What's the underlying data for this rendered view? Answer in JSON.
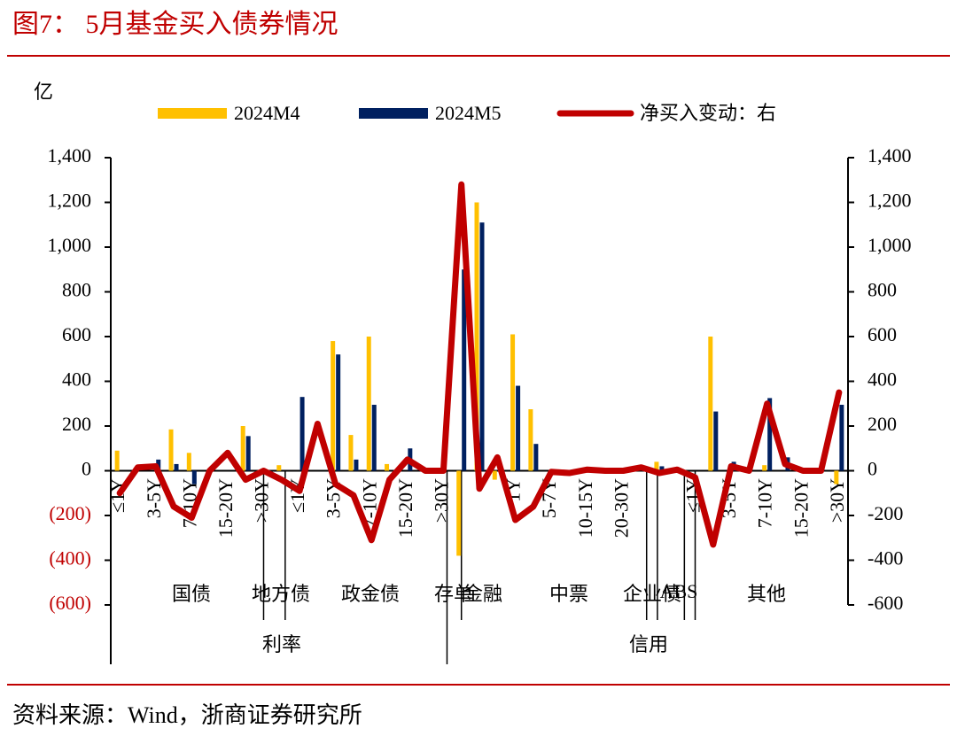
{
  "title": "图7：  5月基金买入债券情况",
  "source": "资料来源：Wind，浙商证券研究所",
  "chart_data": {
    "type": "bar-line",
    "y_unit": "亿",
    "categories": [
      "≤1Y",
      null,
      "3-5Y",
      null,
      "7-10Y",
      null,
      "15-20Y",
      null,
      ">30Y",
      null,
      "≤1Y",
      null,
      "3-5Y",
      null,
      "7-10Y",
      null,
      "15-20Y",
      null,
      ">30Y",
      null,
      null,
      null,
      "1Y",
      null,
      "5-7Y",
      null,
      "10-15Y",
      null,
      "20-30Y",
      null,
      null,
      null,
      "≤1Y",
      null,
      "3-5Y",
      null,
      "7-10Y",
      null,
      "15-20Y",
      null,
      ">30Y"
    ],
    "groups": [
      "国债",
      "地方债",
      "政金债",
      "存单",
      "金融",
      "中票",
      "企业债",
      "ABS",
      "其他"
    ],
    "super_groups": [
      "利率",
      "信用"
    ],
    "series": [
      {
        "name": "2024M4",
        "color": "#ffc000",
        "kind": "bar",
        "values": [
          90,
          null,
          null,
          185,
          80,
          null,
          null,
          200,
          null,
          25,
          null,
          null,
          580,
          160,
          600,
          30,
          null,
          null,
          null,
          -380,
          1200,
          -40,
          610,
          275,
          null,
          null,
          null,
          null,
          null,
          null,
          40,
          null,
          null,
          600,
          null,
          null,
          25,
          null,
          null,
          null,
          -60
        ]
      },
      {
        "name": "2024M5",
        "color": "#002060",
        "kind": "bar",
        "values": [
          null,
          null,
          50,
          30,
          -60,
          null,
          null,
          155,
          null,
          null,
          330,
          null,
          520,
          50,
          295,
          null,
          100,
          null,
          null,
          900,
          1110,
          null,
          380,
          120,
          null,
          null,
          null,
          null,
          null,
          null,
          20,
          null,
          null,
          265,
          40,
          null,
          325,
          60,
          null,
          null,
          295
        ]
      },
      {
        "name": "净买入变动：右",
        "color": "#c00000",
        "kind": "line",
        "axis": "y2",
        "values": [
          -100,
          15,
          20,
          -160,
          -210,
          0,
          80,
          -40,
          0,
          -40,
          -90,
          210,
          -60,
          -110,
          -310,
          -40,
          50,
          0,
          0,
          1280,
          -80,
          60,
          -220,
          -160,
          -5,
          -10,
          5,
          0,
          0,
          15,
          -10,
          5,
          -30,
          -330,
          20,
          0,
          300,
          30,
          0,
          0,
          350
        ]
      }
    ],
    "ylim": [
      -600,
      1400
    ],
    "yticks": [
      {
        "value": 1400,
        "label": "1,400"
      },
      {
        "value": 1200,
        "label": "1,200"
      },
      {
        "value": 1000,
        "label": "1,000"
      },
      800,
      600,
      400,
      200,
      0,
      {
        "value": -200,
        "label": "(200)"
      },
      {
        "value": -400,
        "label": "(400)"
      },
      {
        "value": -600,
        "label": "(600)"
      }
    ],
    "y2lim": [
      -600,
      1400
    ],
    "y2ticks": [
      {
        "value": 1400,
        "label": "1,400"
      },
      {
        "value": 1200,
        "label": "1,200"
      },
      {
        "value": 1000,
        "label": "1,000"
      },
      800,
      600,
      400,
      200,
      0,
      -200,
      -400,
      -600
    ],
    "legend": "top"
  }
}
